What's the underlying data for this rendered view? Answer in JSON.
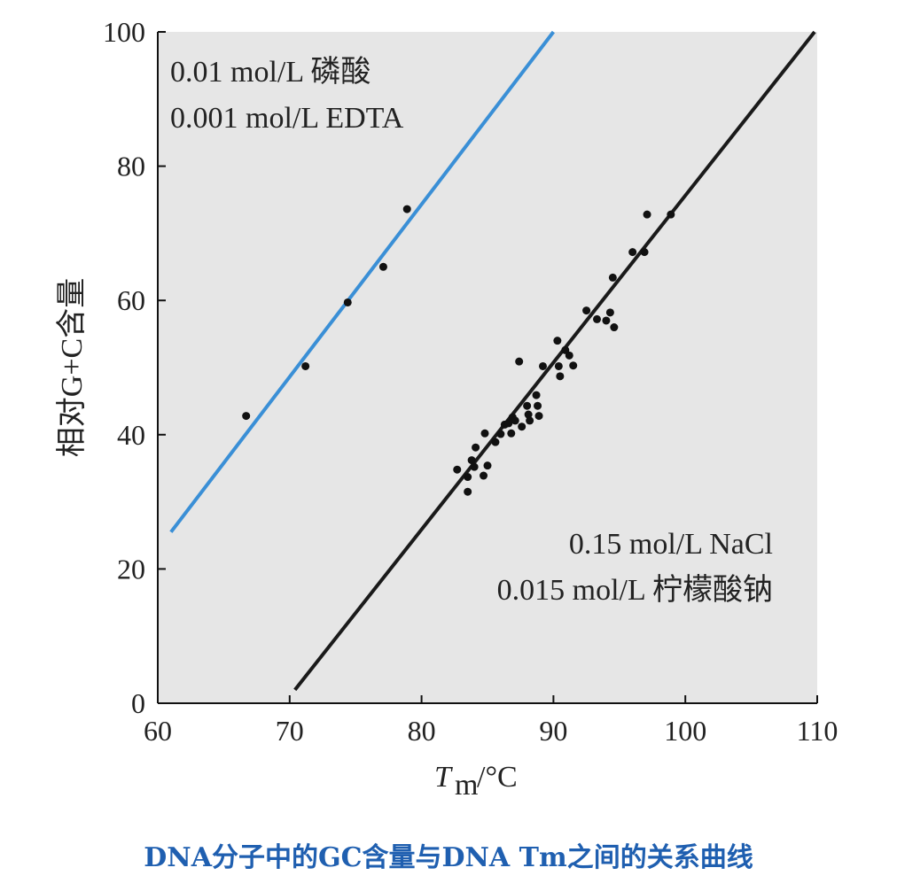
{
  "caption": "DNA分子中的GC含量与DNA Tm之间的关系曲线",
  "chart_data": {
    "type": "scatter",
    "title": "",
    "xlabel_main": "T",
    "xlabel_sub": "m",
    "xlabel_unit": "/°C",
    "ylabel": "相对G+C含量",
    "xlim": [
      60,
      110
    ],
    "ylim": [
      0,
      100
    ],
    "xticks": [
      60,
      70,
      80,
      90,
      100,
      110
    ],
    "yticks": [
      0,
      20,
      40,
      60,
      80,
      100
    ],
    "background_color": "#e6e6e6",
    "grid": false,
    "annotations": [
      {
        "name": "upper-condition-1",
        "text": "0.01 mol/L 磷酸"
      },
      {
        "name": "upper-condition-2",
        "text": "0.001 mol/L EDTA"
      },
      {
        "name": "lower-condition-1",
        "text": "0.15 mol/L NaCl"
      },
      {
        "name": "lower-condition-2",
        "text": "0.015 mol/L 柠檬酸钠"
      }
    ],
    "series": [
      {
        "color": "#3a8fd6",
        "line": [
          [
            61.0,
            25.5
          ],
          [
            90.0,
            100.0
          ]
        ],
        "points": [
          [
            66.7,
            42.8
          ],
          [
            71.2,
            50.2
          ],
          [
            74.4,
            59.7
          ],
          [
            77.1,
            65.0
          ],
          [
            78.9,
            73.6
          ]
        ]
      },
      {
        "color": "#1a1a1a",
        "line": [
          [
            70.4,
            2.0
          ],
          [
            109.8,
            100.0
          ]
        ],
        "points": [
          [
            82.7,
            34.8
          ],
          [
            83.5,
            33.7
          ],
          [
            83.5,
            31.5
          ],
          [
            83.8,
            36.2
          ],
          [
            84.0,
            35.2
          ],
          [
            84.1,
            38.1
          ],
          [
            84.7,
            33.9
          ],
          [
            84.8,
            40.2
          ],
          [
            85.0,
            35.4
          ],
          [
            85.6,
            38.9
          ],
          [
            86.0,
            40.1
          ],
          [
            86.3,
            41.5
          ],
          [
            86.6,
            41.7
          ],
          [
            86.8,
            40.2
          ],
          [
            86.9,
            42.6
          ],
          [
            87.1,
            42.1
          ],
          [
            87.4,
            50.9
          ],
          [
            87.6,
            41.2
          ],
          [
            88.0,
            44.3
          ],
          [
            88.1,
            43.0
          ],
          [
            88.2,
            42.1
          ],
          [
            88.7,
            45.9
          ],
          [
            88.8,
            44.3
          ],
          [
            88.9,
            42.8
          ],
          [
            89.2,
            50.2
          ],
          [
            90.3,
            54.0
          ],
          [
            90.4,
            50.2
          ],
          [
            90.5,
            48.7
          ],
          [
            90.9,
            52.6
          ],
          [
            91.2,
            51.8
          ],
          [
            91.5,
            50.3
          ],
          [
            92.5,
            58.5
          ],
          [
            93.3,
            57.2
          ],
          [
            94.0,
            57.0
          ],
          [
            94.3,
            58.2
          ],
          [
            94.5,
            63.4
          ],
          [
            94.6,
            56.0
          ],
          [
            96.0,
            67.2
          ],
          [
            96.9,
            67.2
          ],
          [
            97.1,
            72.8
          ],
          [
            98.9,
            72.8
          ]
        ]
      }
    ]
  }
}
